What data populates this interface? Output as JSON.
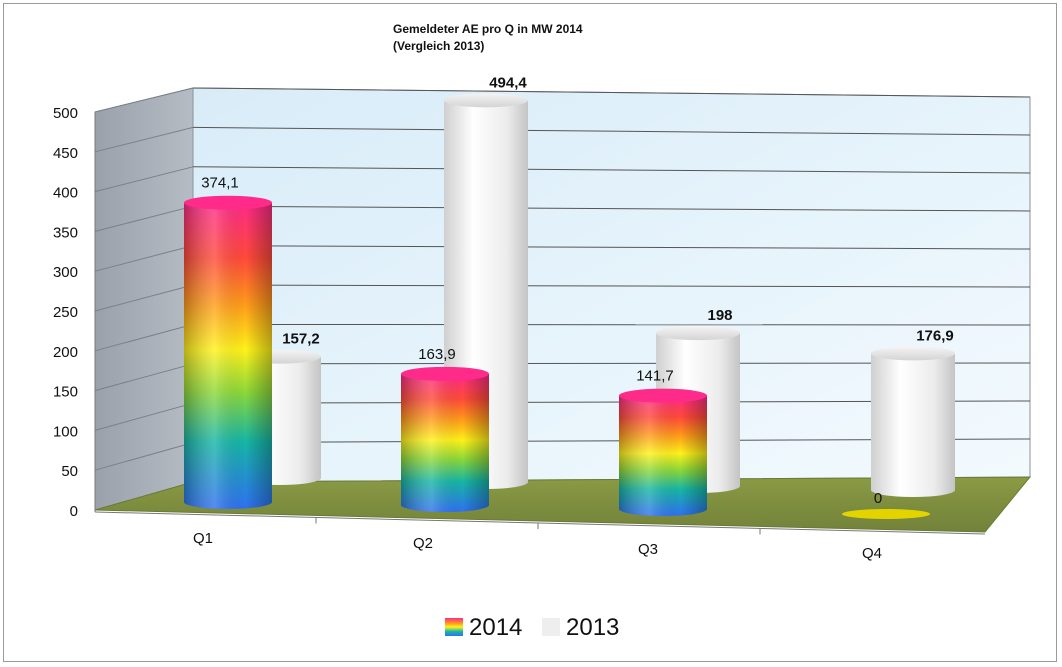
{
  "chart_data": {
    "type": "bar",
    "style": "3d-cylinder",
    "title": "Gemeldeter AE  pro Q in MW 2014",
    "subtitle": "(Vergleich 2013)",
    "categories": [
      "Q1",
      "Q2",
      "Q3",
      "Q4"
    ],
    "series": [
      {
        "name": "2014",
        "values": [
          374.1,
          163.9,
          141.7,
          0
        ],
        "labels": [
          "374,1",
          "163,9",
          "141,7",
          "0"
        ]
      },
      {
        "name": "2013",
        "values": [
          157.2,
          494.4,
          198,
          176.9
        ],
        "labels": [
          "157,2",
          "494,4",
          "198",
          "176,9"
        ]
      }
    ],
    "yticks": [
      "0",
      "50",
      "100",
      "150",
      "200",
      "250",
      "300",
      "350",
      "400",
      "450",
      "500"
    ],
    "ylim": [
      0,
      500
    ],
    "grid": true,
    "legend_position": "bottom",
    "colors": {
      "wall_back": "#e4f2fb",
      "wall_side": "#a3a9b3",
      "floor": "#7c8a3e",
      "series_2013": "#eeeeee",
      "series_2014_zero": "#e3d400"
    }
  }
}
